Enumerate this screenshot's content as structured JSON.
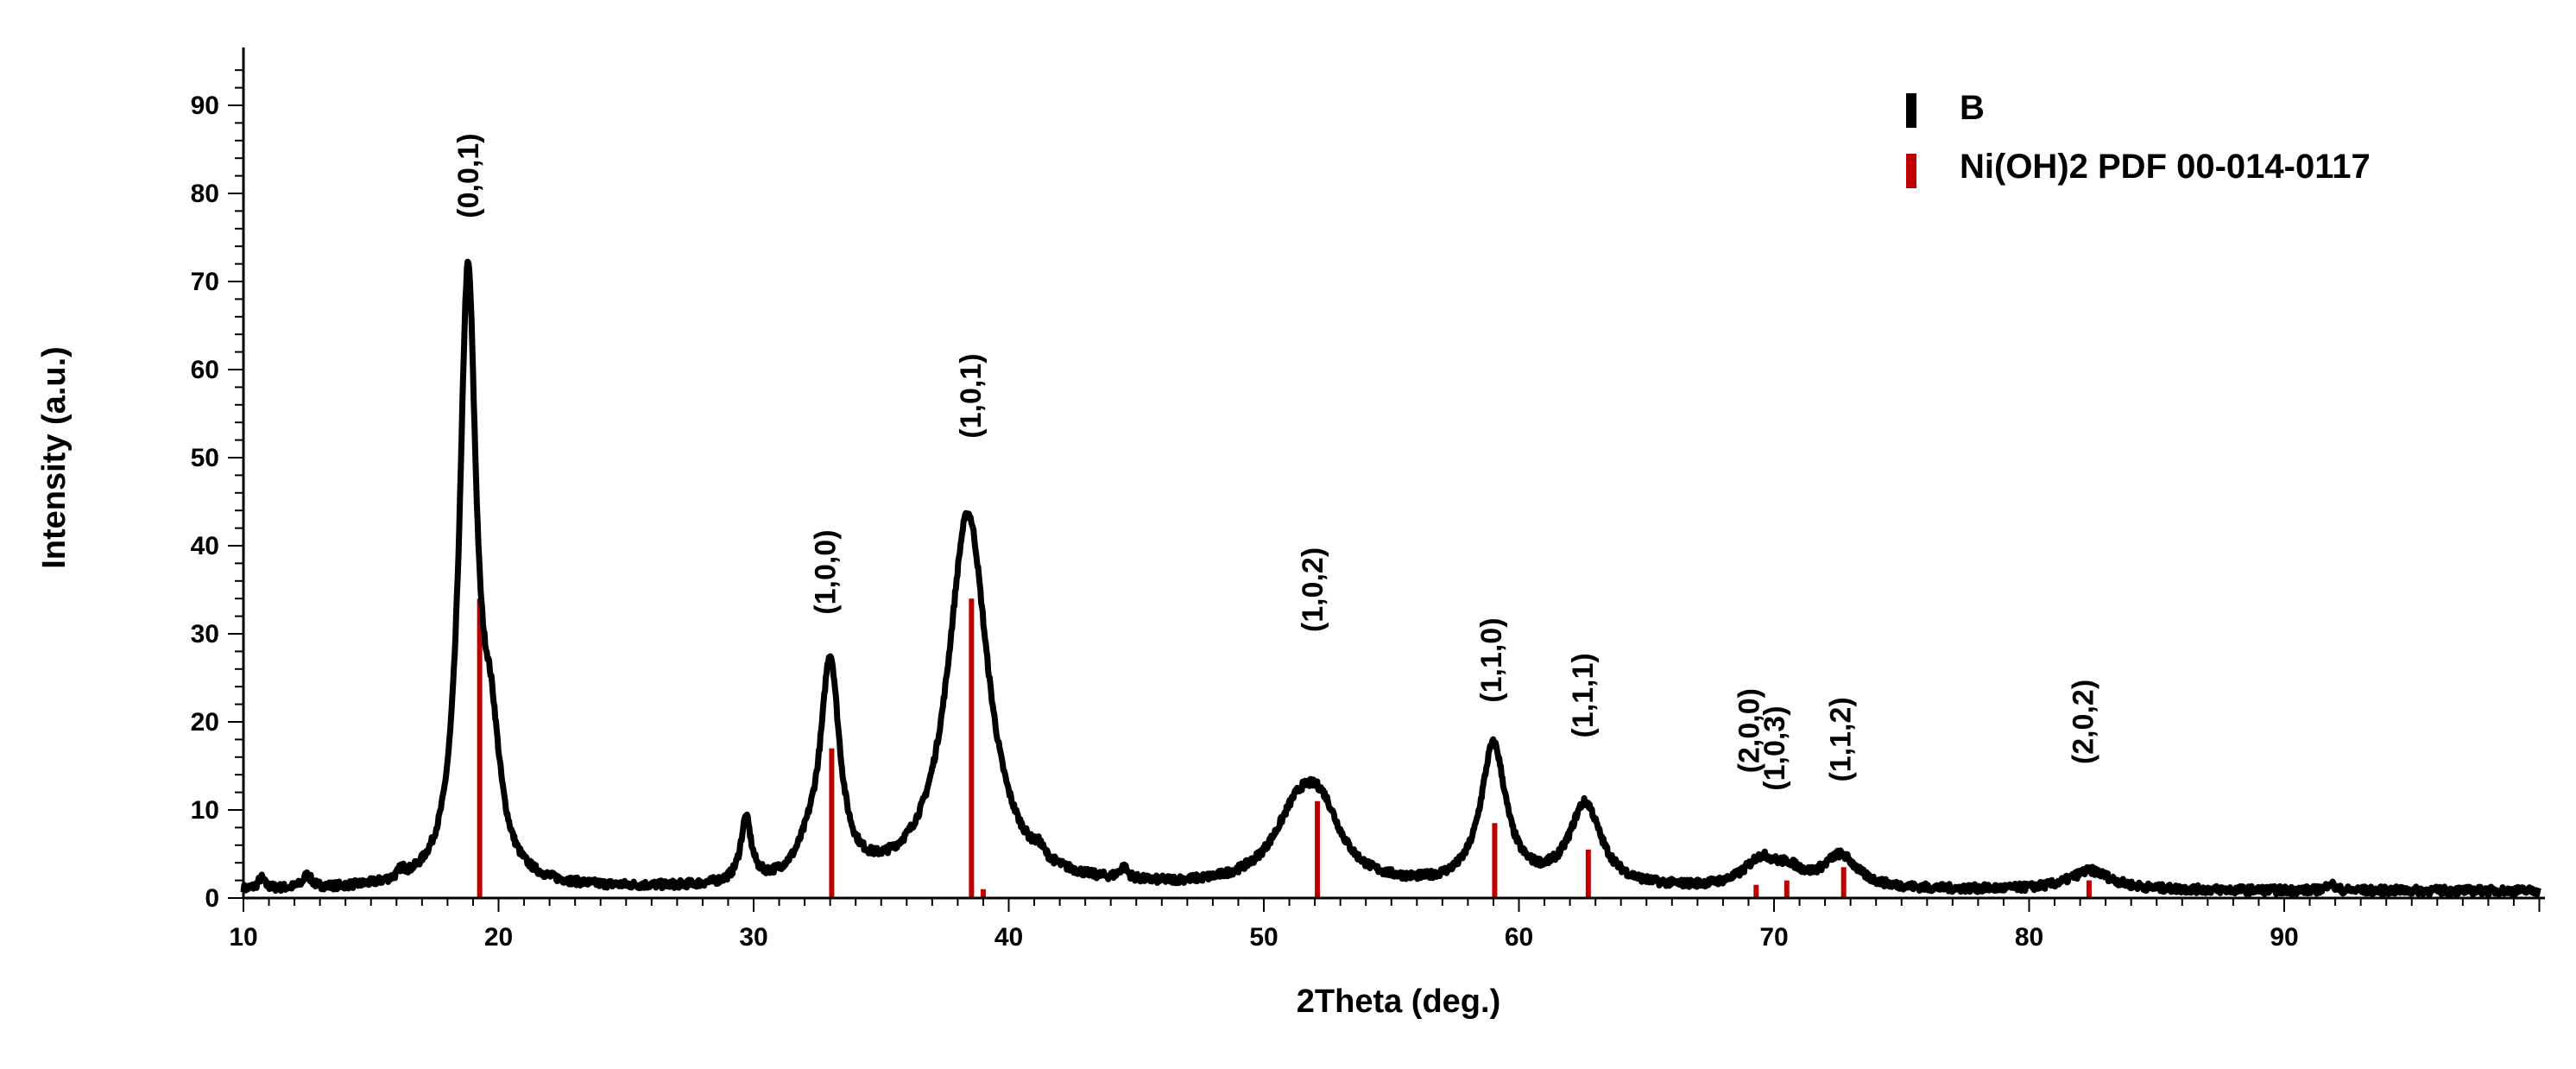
{
  "chart_data": {
    "type": "line",
    "title": "",
    "xlabel": "2Theta (deg.)",
    "ylabel": "Intensity (a.u.)",
    "xlim": [
      10,
      100
    ],
    "ylim": [
      0,
      97
    ],
    "x_ticks": [
      10,
      20,
      30,
      40,
      50,
      60,
      70,
      80,
      90
    ],
    "x_tick_labels": [
      "10",
      "20",
      "30",
      "40",
      "50",
      "60",
      "70",
      "80",
      "90"
    ],
    "y_ticks": [
      0,
      10,
      20,
      30,
      40,
      50,
      60,
      70,
      80,
      90
    ],
    "y_tick_labels": [
      "0",
      "10",
      "20",
      "30",
      "40",
      "50",
      "60",
      "70",
      "80",
      "90"
    ],
    "grid": false,
    "legend_position": "top-right",
    "series": [
      {
        "name": "B",
        "color": "#000000",
        "kind": "pattern",
        "baseline": 0.8,
        "peaks": [
          {
            "x": 10.7,
            "height": 1.2,
            "width": 0.15
          },
          {
            "x": 12.5,
            "height": 1.4,
            "width": 0.2
          },
          {
            "x": 16.2,
            "height": 0.9,
            "width": 0.15
          },
          {
            "x": 18.8,
            "height": 68.5,
            "width": 0.4
          },
          {
            "x": 19.7,
            "height": 13,
            "width": 0.45
          },
          {
            "x": 29.7,
            "height": 7.2,
            "width": 0.25
          },
          {
            "x": 32.2,
            "height": 2.5,
            "width": 0.6
          },
          {
            "x": 33.0,
            "height": 24.5,
            "width": 0.45
          },
          {
            "x": 38.4,
            "height": 42.5,
            "width": 0.95
          },
          {
            "x": 41.2,
            "height": 1.0,
            "width": 0.2
          },
          {
            "x": 44.5,
            "height": 1.3,
            "width": 0.2
          },
          {
            "x": 51.4,
            "height": 8.5,
            "width": 1.2
          },
          {
            "x": 52.3,
            "height": 5.5,
            "width": 0.9
          },
          {
            "x": 59.0,
            "height": 16,
            "width": 0.6
          },
          {
            "x": 62.6,
            "height": 9.4,
            "width": 0.75
          },
          {
            "x": 69.5,
            "height": 3.2,
            "width": 0.8
          },
          {
            "x": 70.6,
            "height": 1.5,
            "width": 0.6
          },
          {
            "x": 72.6,
            "height": 3.7,
            "width": 0.8
          },
          {
            "x": 82.4,
            "height": 2.2,
            "width": 1.0
          },
          {
            "x": 91.8,
            "height": 0.9,
            "width": 0.15
          }
        ]
      },
      {
        "name": "Ni(OH)2 PDF 00-014-0117",
        "color": "#c00000",
        "kind": "reference",
        "positions": [
          19.26,
          33.06,
          38.54,
          39.0,
          52.1,
          59.05,
          62.72,
          69.3,
          70.5,
          72.73,
          82.35
        ],
        "intensities": [
          34,
          17,
          34,
          1,
          11,
          8.5,
          5.5,
          1.5,
          2,
          3.5,
          2
        ]
      }
    ],
    "annotations": [
      {
        "text": "(0,0,1)",
        "x": 19.2,
        "y": 82
      },
      {
        "text": "(1,0,0)",
        "x": 33.2,
        "y": 37
      },
      {
        "text": "(1,0,1)",
        "x": 38.9,
        "y": 57
      },
      {
        "text": "(1,0,2)",
        "x": 52.3,
        "y": 35
      },
      {
        "text": "(1,1,0)",
        "x": 59.3,
        "y": 27
      },
      {
        "text": "(1,1,1)",
        "x": 62.9,
        "y": 23
      },
      {
        "text": "(2,0,0)",
        "x": 69.4,
        "y": 19
      },
      {
        "text": "(1,0,3)",
        "x": 70.4,
        "y": 17
      },
      {
        "text": "(1,1,2)",
        "x": 73.0,
        "y": 18
      },
      {
        "text": "(2,0,2)",
        "x": 82.5,
        "y": 20
      }
    ]
  }
}
